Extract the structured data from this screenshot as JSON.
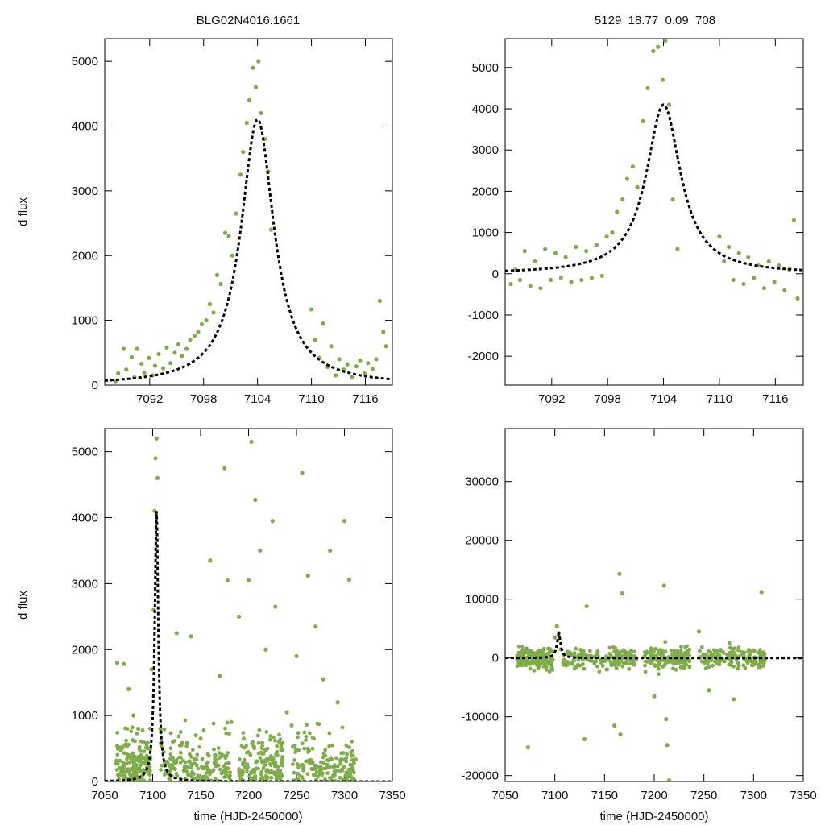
{
  "header": {
    "left_title": "BLG02N4016.1661",
    "right_title": "5129  18.77  0.09  708"
  },
  "colors": {
    "points": "#7fad4a",
    "model": "#000000",
    "frame": "#000000"
  },
  "model": {
    "type": "paczynski-like peak",
    "t0": 7104.0,
    "peak": 4100,
    "tE": 4.0
  },
  "chart_data": [
    {
      "type": "scatter",
      "panel": "top-left",
      "title": "BLG02N4016.1661",
      "xlabel": "",
      "ylabel": "d flux",
      "xlim": [
        7087,
        7119
      ],
      "ylim": [
        0,
        5350
      ],
      "xticks": [
        7092,
        7098,
        7104,
        7110,
        7116
      ],
      "yticks": [
        0,
        1000,
        2000,
        3000,
        4000,
        5000
      ],
      "series": [
        {
          "name": "observations",
          "x": [
            7088.2,
            7088.5,
            7089.1,
            7089.4,
            7090.0,
            7090.3,
            7090.6,
            7091.1,
            7091.4,
            7091.9,
            7092.3,
            7092.6,
            7093.0,
            7093.5,
            7093.9,
            7094.3,
            7094.8,
            7095.2,
            7095.6,
            7096.1,
            7096.5,
            7097.0,
            7097.4,
            7097.8,
            7098.3,
            7098.7,
            7099.1,
            7099.5,
            7099.9,
            7100.4,
            7100.8,
            7101.2,
            7101.6,
            7102.1,
            7102.4,
            7102.8,
            7103.1,
            7103.5,
            7103.8,
            7104.1,
            7104.4,
            7104.8,
            7105.2,
            7105.5,
            7110.0,
            7110.4,
            7110.9,
            7111.3,
            7111.8,
            7112.2,
            7112.7,
            7113.1,
            7113.6,
            7114.0,
            7114.5,
            7115.0,
            7115.4,
            7115.9,
            7116.3,
            7116.8,
            7117.2,
            7117.6,
            7118.0,
            7118.3
          ],
          "y": [
            50,
            180,
            560,
            240,
            430,
            120,
            560,
            330,
            190,
            420,
            150,
            300,
            480,
            260,
            580,
            340,
            500,
            630,
            450,
            560,
            700,
            760,
            820,
            940,
            1000,
            1250,
            1120,
            1700,
            1560,
            2350,
            2300,
            2000,
            2650,
            3250,
            3600,
            4050,
            4400,
            4900,
            4600,
            5000,
            4200,
            3800,
            3300,
            2400,
            1170,
            700,
            420,
            950,
            280,
            600,
            150,
            400,
            240,
            320,
            120,
            290,
            380,
            180,
            340,
            250,
            400,
            1300,
            820,
            600
          ]
        },
        {
          "name": "model",
          "style": "dashed",
          "t0": 7104.0,
          "peak": 4100,
          "tE": 4.0
        }
      ]
    },
    {
      "type": "scatter",
      "panel": "top-right",
      "title": "5129  18.77  0.09  708",
      "xlabel": "",
      "ylabel": "",
      "xlim": [
        7087,
        7119
      ],
      "ylim": [
        -2700,
        5700
      ],
      "xticks": [
        7092,
        7098,
        7104,
        7110,
        7116
      ],
      "yticks": [
        -2000,
        -1000,
        0,
        1000,
        2000,
        3000,
        4000,
        5000
      ],
      "series": [
        {
          "name": "observations",
          "x": [
            7087.6,
            7088.1,
            7088.6,
            7089.1,
            7089.7,
            7090.2,
            7090.8,
            7091.3,
            7091.9,
            7092.4,
            7093.0,
            7093.5,
            7094.1,
            7094.6,
            7095.2,
            7095.7,
            7096.3,
            7096.8,
            7097.4,
            7097.9,
            7098.5,
            7099.0,
            7099.6,
            7100.1,
            7100.7,
            7101.2,
            7101.8,
            7102.3,
            7102.9,
            7103.4,
            7103.9,
            7104.2,
            7104.6,
            7105.0,
            7105.5,
            7110.0,
            7110.5,
            7111.0,
            7111.5,
            7112.1,
            7112.6,
            7113.1,
            7113.7,
            7114.2,
            7114.8,
            7115.3,
            7115.9,
            7116.4,
            7117.0,
            7117.5,
            7118.0,
            7118.4
          ],
          "y": [
            -250,
            100,
            -150,
            550,
            -300,
            300,
            -350,
            600,
            -150,
            500,
            -100,
            400,
            -200,
            650,
            -150,
            550,
            -100,
            700,
            -50,
            900,
            1000,
            1500,
            1800,
            2300,
            2600,
            2100,
            3700,
            4500,
            5400,
            5500,
            4700,
            5650,
            4100,
            1800,
            600,
            900,
            300,
            650,
            -150,
            500,
            -250,
            400,
            -100,
            200,
            -350,
            300,
            -200,
            200,
            -400,
            100,
            1300,
            -600
          ]
        },
        {
          "name": "model",
          "style": "dashed",
          "t0": 7104.0,
          "peak": 4100,
          "tE": 4.0
        }
      ]
    },
    {
      "type": "scatter",
      "panel": "bottom-left",
      "title": "",
      "xlabel": "time (HJD-2450000)",
      "ylabel": "d flux",
      "xlim": [
        7050,
        7350
      ],
      "ylim": [
        0,
        5350
      ],
      "xticks": [
        7050,
        7100,
        7150,
        7200,
        7250,
        7300,
        7350
      ],
      "yticks": [
        0,
        1000,
        2000,
        3000,
        4000,
        5000
      ],
      "series": [
        {
          "name": "observations",
          "x": [
            7063,
            7070,
            7075,
            7080,
            7085,
            7090,
            7095,
            7099,
            7101,
            7102,
            7103,
            7104,
            7105,
            7108,
            7115,
            7120,
            7125,
            7130,
            7140,
            7145,
            7150,
            7160,
            7165,
            7170,
            7175,
            7178,
            7182,
            7190,
            7195,
            7200,
            7203,
            7207,
            7212,
            7218,
            7225,
            7228,
            7232,
            7240,
            7245,
            7250,
            7256,
            7262,
            7270,
            7278,
            7285,
            7293,
            7300,
            7305
          ],
          "y": [
            1800,
            1780,
            1400,
            1000,
            800,
            600,
            500,
            1700,
            2600,
            4100,
            4900,
            5200,
            4600,
            800,
            300,
            200,
            2250,
            550,
            2200,
            700,
            650,
            3350,
            400,
            1600,
            4750,
            3050,
            900,
            2500,
            650,
            3050,
            5150,
            4270,
            3500,
            2000,
            3950,
            2650,
            600,
            1050,
            850,
            1900,
            4680,
            3120,
            2350,
            1550,
            3500,
            1200,
            3950,
            3060
          ]
        },
        {
          "name": "model",
          "style": "dashed",
          "t0": 7104.0,
          "peak": 4100,
          "tE": 4.0
        }
      ]
    },
    {
      "type": "scatter",
      "panel": "bottom-right",
      "title": "",
      "xlabel": "time (HJD-2450000)",
      "ylabel": "",
      "xlim": [
        7050,
        7350
      ],
      "ylim": [
        -21000,
        39000
      ],
      "xticks": [
        7050,
        7100,
        7150,
        7200,
        7250,
        7300,
        7350
      ],
      "yticks": [
        -20000,
        -10000,
        0,
        10000,
        20000,
        30000
      ],
      "series": [
        {
          "name": "observations",
          "x": [
            7062,
            7070,
            7073,
            7080,
            7090,
            7100,
            7102,
            7104,
            7106,
            7110,
            7120,
            7130,
            7132,
            7140,
            7150,
            7160,
            7165,
            7166,
            7168,
            7170,
            7180,
            7190,
            7200,
            7205,
            7210,
            7212,
            7213,
            7215,
            7225,
            7245,
            7255,
            7265,
            7280,
            7290,
            7305,
            7308
          ],
          "y": [
            300,
            -400,
            -15200,
            200,
            -200,
            3500,
            5400,
            4200,
            1500,
            -400,
            300,
            -13800,
            8800,
            200,
            -300,
            -11500,
            14300,
            -13000,
            11000,
            400,
            -300,
            200,
            -6500,
            -300,
            12300,
            -10400,
            -14800,
            -20800,
            -300,
            4500,
            -5500,
            300,
            -7000,
            400,
            -1500,
            11200
          ]
        },
        {
          "name": "model",
          "style": "dashed",
          "t0": 7104.0,
          "peak": 4100,
          "tE": 4.0
        }
      ]
    }
  ]
}
